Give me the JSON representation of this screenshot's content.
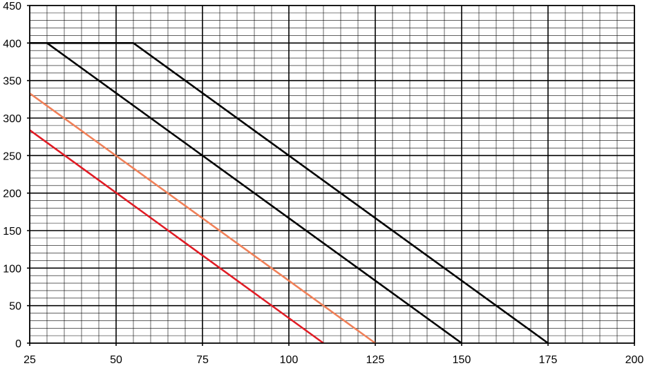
{
  "chart_data": {
    "type": "line",
    "title": "",
    "xlabel": "",
    "ylabel": "",
    "xlim": [
      25,
      200
    ],
    "ylim": [
      0,
      450
    ],
    "x_major_step": 25,
    "x_minor_step": 5,
    "y_major_step": 50,
    "y_minor_step": 10,
    "grid": true,
    "legend": "none",
    "x_ticks": [
      "25",
      "50",
      "75",
      "100",
      "125",
      "150",
      "175",
      "200"
    ],
    "y_ticks": [
      "0",
      "50",
      "100",
      "150",
      "200",
      "250",
      "300",
      "350",
      "400",
      "450"
    ],
    "series": [
      {
        "color": "#000000",
        "points": [
          [
            25,
            400
          ],
          [
            55,
            400
          ],
          [
            175,
            0
          ]
        ]
      },
      {
        "color": "#000000",
        "points": [
          [
            30,
            400
          ],
          [
            150,
            0
          ]
        ]
      },
      {
        "color": "#f08058",
        "points": [
          [
            25,
            333
          ],
          [
            125,
            0
          ]
        ]
      },
      {
        "color": "#e01b24",
        "points": [
          [
            25,
            284
          ],
          [
            110,
            0
          ]
        ]
      }
    ]
  }
}
